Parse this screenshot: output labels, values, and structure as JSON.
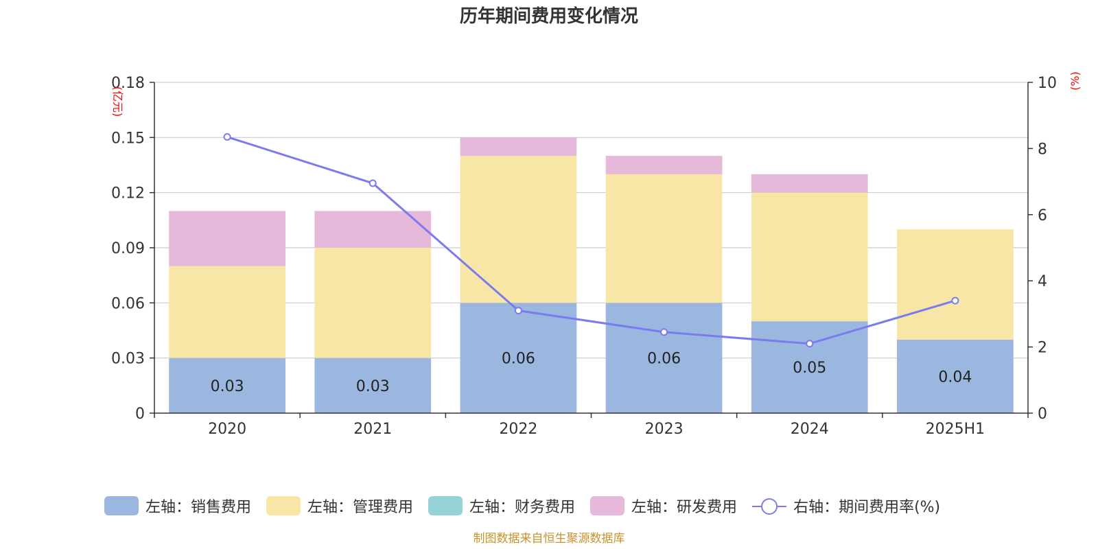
{
  "chart_data": {
    "type": "bar",
    "title": "历年期间费用变化情况",
    "categories": [
      "2020",
      "2021",
      "2022",
      "2023",
      "2024",
      "2025H1"
    ],
    "left_axis": {
      "unit": "(亿元)",
      "ylim": [
        0,
        0.18
      ],
      "ticks": [
        "0",
        "0.03",
        "0.06",
        "0.09",
        "0.12",
        "0.15",
        "0.18"
      ]
    },
    "right_axis": {
      "unit": "(%)",
      "ylim": [
        0,
        10
      ],
      "ticks": [
        "0",
        "2",
        "4",
        "6",
        "8",
        "10"
      ]
    },
    "series": [
      {
        "name": "左轴：销售费用",
        "axis": "left",
        "kind": "bar",
        "color": "#9bb7e0",
        "values": [
          0.03,
          0.03,
          0.06,
          0.06,
          0.05,
          0.04
        ],
        "labels": [
          "0.03",
          "0.03",
          "0.06",
          "0.06",
          "0.05",
          "0.04"
        ]
      },
      {
        "name": "左轴：管理费用",
        "axis": "left",
        "kind": "bar",
        "color": "#f7e6a6",
        "values": [
          0.05,
          0.06,
          0.08,
          0.07,
          0.07,
          0.06
        ]
      },
      {
        "name": "左轴：财务费用",
        "axis": "left",
        "kind": "bar",
        "color": "#96d3d6",
        "values": [
          0,
          0,
          0,
          0,
          0,
          0
        ]
      },
      {
        "name": "左轴：研发费用",
        "axis": "left",
        "kind": "bar",
        "color": "#e6b8da",
        "values": [
          0.03,
          0.02,
          0.01,
          0.01,
          0.01,
          0
        ]
      },
      {
        "name": "右轴：期间费用率(%)",
        "axis": "right",
        "kind": "line",
        "color": "#7b7bef",
        "values": [
          8.35,
          6.95,
          3.1,
          2.45,
          2.1,
          3.4
        ]
      }
    ],
    "grid": true,
    "legend": "bottom"
  },
  "source": "制图数据来自恒生聚源数据库"
}
